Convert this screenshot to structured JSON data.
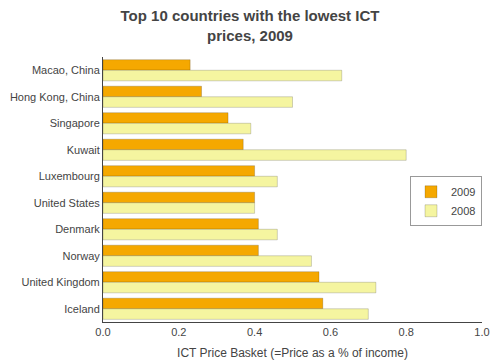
{
  "chart_data": {
    "type": "bar",
    "orientation": "horizontal",
    "title": "Top 10 countries with the lowest ICT\nprices, 2009",
    "x_label": "ICT Price Basket (=Price as a % of income)",
    "categories": [
      "Macao, China",
      "Hong Kong, China",
      "Singapore",
      "Kuwait",
      "Luxembourg",
      "United States",
      "Denmark",
      "Norway",
      "United Kingdom",
      "Iceland"
    ],
    "series": [
      {
        "name": "2009",
        "color": "#F5A800",
        "values": [
          0.23,
          0.26,
          0.33,
          0.37,
          0.4,
          0.4,
          0.41,
          0.41,
          0.57,
          0.58
        ]
      },
      {
        "name": "2008",
        "color": "#F5F5A0",
        "values": [
          0.63,
          0.5,
          0.39,
          0.8,
          0.46,
          0.4,
          0.46,
          0.55,
          0.72,
          0.7
        ]
      }
    ],
    "xlim": [
      0.0,
      1.0
    ],
    "xticks": [
      {
        "value": 0.0,
        "label": "0.0"
      },
      0.2,
      0.4,
      0.6,
      0.8,
      {
        "value": 1.0,
        "label": "1.0"
      }
    ],
    "grid": false,
    "legend": "right"
  }
}
